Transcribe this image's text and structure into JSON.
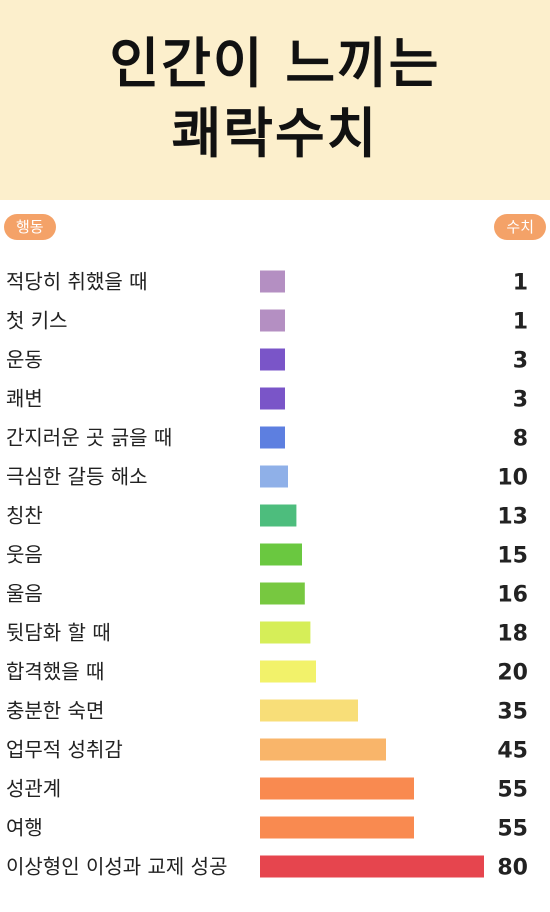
{
  "header": {
    "title_line1": "인간이 느끼는",
    "title_line2": "쾌락수치"
  },
  "columns": {
    "left": "행동",
    "right": "수치"
  },
  "chart_data": {
    "type": "bar",
    "orientation": "horizontal",
    "title": "인간이 느끼는 쾌락수치",
    "xlabel": "수치",
    "ylabel": "행동",
    "categories": [
      "적당히 취했을 때",
      "첫 키스",
      "운동",
      "쾌변",
      "간지러운 곳 긁을 때",
      "극심한 갈등 해소",
      "칭찬",
      "웃음",
      "울음",
      "뒷담화 할 때",
      "합격했을 때",
      "충분한 숙면",
      "업무적 성취감",
      "성관계",
      "여행",
      "이상형인 이성과 교제 성공"
    ],
    "values": [
      1,
      1,
      3,
      3,
      8,
      10,
      13,
      15,
      16,
      18,
      20,
      35,
      45,
      55,
      55,
      80
    ],
    "colors": [
      "#b48fc2",
      "#b48fc2",
      "#7a55c8",
      "#7a55c8",
      "#5d7fe0",
      "#8fb0e8",
      "#4dbd7d",
      "#6ac840",
      "#77c840",
      "#d6ee58",
      "#f2f26a",
      "#f8de78",
      "#f9b56a",
      "#f98a50",
      "#f98a50",
      "#e6454e"
    ],
    "grid": false,
    "legend": "none"
  }
}
